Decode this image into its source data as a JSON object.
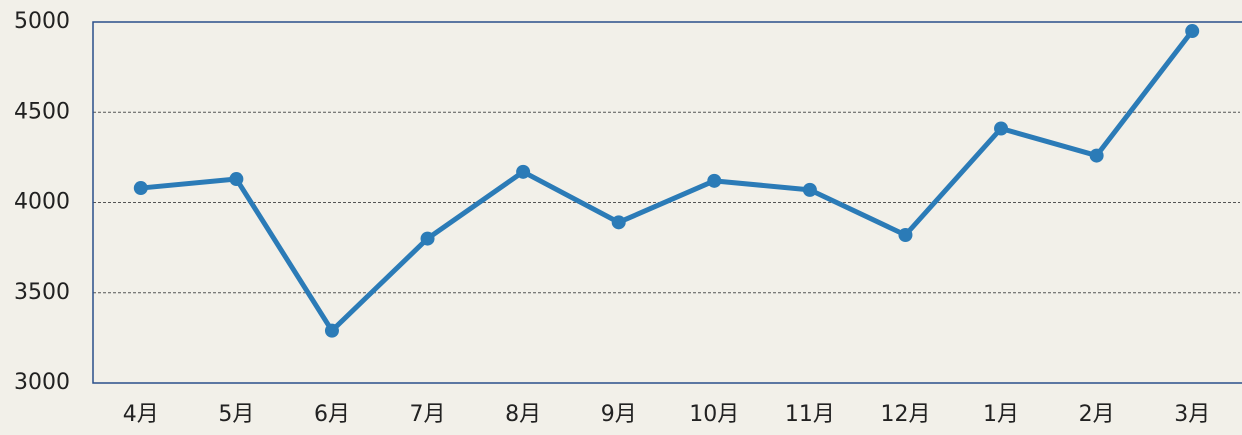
{
  "chart_data": {
    "type": "line",
    "categories": [
      "4月",
      "5月",
      "6月",
      "7月",
      "8月",
      "9月",
      "10月",
      "11月",
      "12月",
      "1月",
      "2月",
      "3月"
    ],
    "series": [
      {
        "name": null,
        "color": "#2b7bb7",
        "values": [
          4080,
          4130,
          3290,
          3800,
          4170,
          3890,
          4120,
          4070,
          3820,
          4410,
          4260,
          4950
        ]
      }
    ],
    "ylim": [
      3000,
      5000
    ],
    "yticks": [
      3000,
      3500,
      4000,
      4500,
      5000
    ],
    "grid": true
  }
}
